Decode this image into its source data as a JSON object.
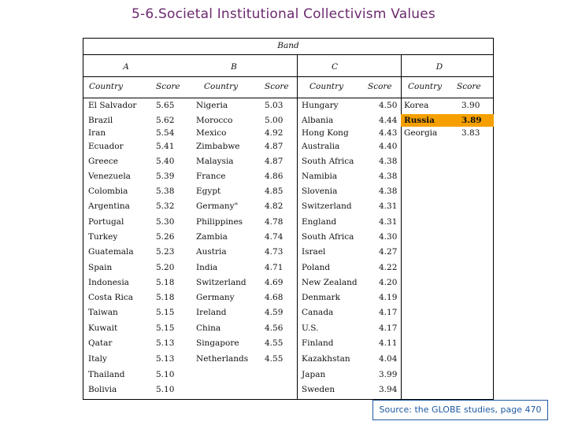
{
  "title": "5-6.Societal Institutional Collectivism Values",
  "band_label": "Band",
  "bands": [
    "A",
    "B",
    "C",
    "D"
  ],
  "column_headers": {
    "country": "Country",
    "score": "Score"
  },
  "colA": [
    [
      "El Salvador",
      "5.65"
    ],
    [
      "Brazil",
      "5.62"
    ],
    [
      "Iran",
      "5.54"
    ],
    [
      "Ecuador",
      "5.41"
    ],
    [
      "Greece",
      "5.40"
    ],
    [
      "Venezuela",
      "5.39"
    ],
    [
      "Colombia",
      "5.38"
    ],
    [
      "Argentina",
      "5.32"
    ],
    [
      "Portugal",
      "5.30"
    ],
    [
      "Turkey",
      "5.26"
    ],
    [
      "Guatemala",
      "5.23"
    ],
    [
      "Spain",
      "5.20"
    ],
    [
      "Indonesia",
      "5.18"
    ],
    [
      "Costa Rica",
      "5.18"
    ],
    [
      "Taiwan",
      "5.15"
    ],
    [
      "Kuwait",
      "5.15"
    ],
    [
      "Qatar",
      "5.13"
    ],
    [
      "Italy",
      "5.13"
    ],
    [
      "Thailand",
      "5.10"
    ],
    [
      "Bolivia",
      "5.10"
    ]
  ],
  "colB": [
    [
      "Nigeria",
      "5.03"
    ],
    [
      "Morocco",
      "5.00"
    ],
    [
      "Mexico",
      "4.92"
    ],
    [
      "Zimbabwe",
      "4.87"
    ],
    [
      "Malaysia",
      "4.87"
    ],
    [
      "France",
      "4.86"
    ],
    [
      "Egypt",
      "4.85"
    ],
    [
      "Germany\"",
      "4.82"
    ],
    [
      "Philippines",
      "4.78"
    ],
    [
      "Zambia",
      "4.74"
    ],
    [
      "Austria",
      "4.73"
    ],
    [
      "India",
      "4.71"
    ],
    [
      "Switzerland",
      "4.69"
    ],
    [
      "Germany",
      "4.68"
    ],
    [
      "Ireland",
      "4.59"
    ],
    [
      "China",
      "4.56"
    ],
    [
      "Singapore",
      "4.55"
    ],
    [
      "Netherlands",
      "4.55"
    ]
  ],
  "colC": [
    [
      "Hungary",
      "4.50"
    ],
    [
      "Albania",
      "4.44"
    ],
    [
      "Hong Kong",
      "4.43"
    ],
    [
      "Australia",
      "4.40"
    ],
    [
      "South Africa",
      "4.38"
    ],
    [
      "Namibia",
      "4.38"
    ],
    [
      "Slovenia",
      "4.38"
    ],
    [
      "Switzerland",
      "4.31"
    ],
    [
      "England",
      "4.31"
    ],
    [
      "South Africa",
      "4.30"
    ],
    [
      "Israel",
      "4.27"
    ],
    [
      "Poland",
      "4.22"
    ],
    [
      "New Zealand",
      "4.20"
    ],
    [
      "Denmark",
      "4.19"
    ],
    [
      "Canada",
      "4.17"
    ],
    [
      "U.S.",
      "4.17"
    ],
    [
      "Finland",
      "4.11"
    ],
    [
      "Kazakhstan",
      "4.04"
    ],
    [
      "Japan",
      "3.99"
    ],
    [
      "Sweden",
      "3.94"
    ]
  ],
  "colD": [
    [
      "Korea",
      "3.90"
    ],
    [
      "Russia",
      "3.89"
    ],
    [
      "Georgia",
      "3.83"
    ]
  ],
  "highlight_color": "#f5a000",
  "source": "Source: the GLOBE studies, page 470"
}
